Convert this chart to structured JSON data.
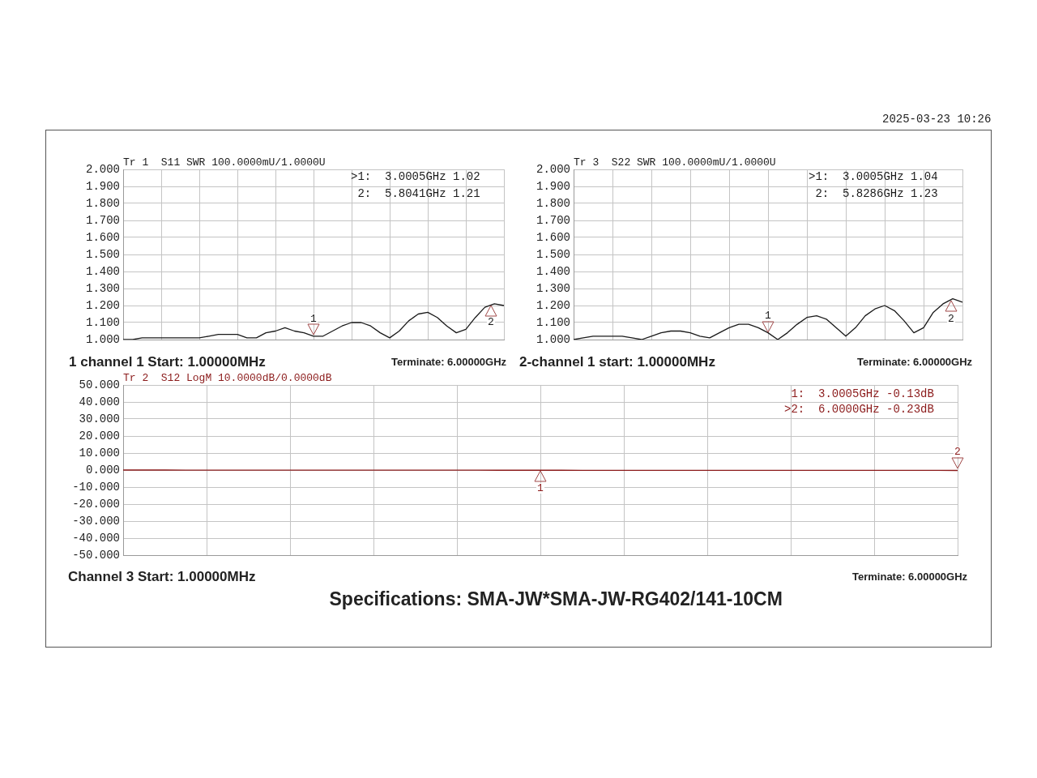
{
  "chart_data": [
    {
      "type": "line",
      "title": "Tr 1  S11 SWR 100.0000mU/1.0000U",
      "categories": [
        null,
        null,
        null,
        null,
        null,
        null,
        null,
        null,
        null,
        null,
        null,
        null,
        null,
        null,
        null,
        null,
        null,
        null,
        null,
        null,
        null,
        null,
        null,
        null,
        null,
        null,
        null,
        null,
        null,
        null,
        null,
        null,
        null,
        null,
        null,
        null,
        null,
        null,
        null,
        null,
        null
      ],
      "series": [
        {
          "color": "#1a1a1a",
          "values": [
            1.0,
            1.0,
            1.01,
            1.01,
            1.01,
            1.01,
            1.01,
            1.01,
            1.01,
            1.02,
            1.03,
            1.03,
            1.03,
            1.01,
            1.01,
            1.04,
            1.05,
            1.07,
            1.05,
            1.04,
            1.02,
            1.02,
            1.05,
            1.08,
            1.1,
            1.1,
            1.08,
            1.04,
            1.01,
            1.05,
            1.11,
            1.15,
            1.16,
            1.13,
            1.08,
            1.04,
            1.06,
            1.13,
            1.19,
            1.21,
            1.2
          ]
        }
      ],
      "ylim": [
        1,
        2
      ],
      "yticks": [
        {
          "value": 1,
          "label": "1.000"
        },
        {
          "value": 1.1,
          "label": "1.100"
        },
        {
          "value": 1.2,
          "label": "1.200"
        },
        {
          "value": 1.3,
          "label": "1.300"
        },
        {
          "value": 1.4,
          "label": "1.400"
        },
        {
          "value": 1.5,
          "label": "1.500"
        },
        {
          "value": 1.6,
          "label": "1.600"
        },
        {
          "value": 1.7,
          "label": "1.700"
        },
        {
          "value": 1.8,
          "label": "1.800"
        },
        {
          "value": 1.9,
          "label": "1.900"
        },
        {
          "value": 2,
          "label": "2.000"
        }
      ],
      "grid": true,
      "annotations": [
        ">1:  3.0005GHz 1.02",
        " 2:  5.8041GHz 1.21",
        "1 channel 1 Start: 1.00000MHz",
        "Terminate: 6.00000GHz",
        "1",
        "2"
      ]
    },
    {
      "type": "line",
      "title": "Tr 3  S22 SWR 100.0000mU/1.0000U",
      "categories": [
        null,
        null,
        null,
        null,
        null,
        null,
        null,
        null,
        null,
        null,
        null,
        null,
        null,
        null,
        null,
        null,
        null,
        null,
        null,
        null,
        null,
        null,
        null,
        null,
        null,
        null,
        null,
        null,
        null,
        null,
        null,
        null,
        null,
        null,
        null,
        null,
        null,
        null,
        null,
        null,
        null
      ],
      "series": [
        {
          "color": "#1a1a1a",
          "values": [
            1.0,
            1.01,
            1.02,
            1.02,
            1.02,
            1.02,
            1.01,
            1.0,
            1.02,
            1.04,
            1.05,
            1.05,
            1.04,
            1.02,
            1.01,
            1.04,
            1.07,
            1.09,
            1.09,
            1.07,
            1.04,
            1.0,
            1.04,
            1.09,
            1.13,
            1.14,
            1.12,
            1.07,
            1.02,
            1.07,
            1.14,
            1.18,
            1.2,
            1.17,
            1.11,
            1.04,
            1.07,
            1.16,
            1.21,
            1.24,
            1.22
          ]
        }
      ],
      "ylim": [
        1,
        2
      ],
      "yticks": [
        {
          "value": 1,
          "label": "1.000"
        },
        {
          "value": 1.1,
          "label": "1.100"
        },
        {
          "value": 1.2,
          "label": "1.200"
        },
        {
          "value": 1.3,
          "label": "1.300"
        },
        {
          "value": 1.4,
          "label": "1.400"
        },
        {
          "value": 1.5,
          "label": "1.500"
        },
        {
          "value": 1.6,
          "label": "1.600"
        },
        {
          "value": 1.7,
          "label": "1.700"
        },
        {
          "value": 1.8,
          "label": "1.800"
        },
        {
          "value": 1.9,
          "label": "1.900"
        },
        {
          "value": 2,
          "label": "2.000"
        }
      ],
      "grid": true,
      "annotations": [
        ">1:  3.0005GHz 1.04",
        " 2:  5.8286GHz 1.23",
        "2-channel 1 start: 1.00000MHz",
        "Terminate: 6.00000GHz",
        "1",
        "2",
        "2025-03-23 10:26"
      ]
    },
    {
      "type": "line",
      "title": "Tr 2  S12 LogM 10.0000dB/0.0000dB",
      "categories": [
        null,
        null,
        null,
        null,
        null,
        null,
        null,
        null,
        null,
        null,
        null,
        null,
        null,
        null,
        null,
        null,
        null,
        null,
        null,
        null,
        null,
        null,
        null,
        null,
        null,
        null,
        null,
        null,
        null,
        null,
        null,
        null,
        null,
        null,
        null,
        null,
        null,
        null,
        null,
        null,
        null
      ],
      "series": [
        {
          "color": "#8b1a1a",
          "values": [
            0,
            -0.01,
            -0.01,
            -0.02,
            -0.02,
            -0.03,
            -0.03,
            -0.04,
            -0.04,
            -0.05,
            -0.05,
            -0.06,
            -0.06,
            -0.07,
            -0.08,
            -0.08,
            -0.09,
            -0.1,
            -0.11,
            -0.12,
            -0.13,
            -0.13,
            -0.14,
            -0.14,
            -0.15,
            -0.15,
            -0.16,
            -0.16,
            -0.17,
            -0.17,
            -0.18,
            -0.18,
            -0.19,
            -0.19,
            -0.2,
            -0.2,
            -0.21,
            -0.21,
            -0.22,
            -0.22,
            -0.23
          ]
        }
      ],
      "ylim": [
        -50,
        50
      ],
      "yticks": [
        {
          "value": -50,
          "label": "-50.000"
        },
        {
          "value": -40,
          "label": "-40.000"
        },
        {
          "value": -30,
          "label": "-30.000"
        },
        {
          "value": -20,
          "label": "-20.000"
        },
        {
          "value": -10,
          "label": "-10.000"
        },
        {
          "value": 0,
          "label": "0.000"
        },
        {
          "value": 10,
          "label": "10.000"
        },
        {
          "value": 20,
          "label": "20.000"
        },
        {
          "value": 30,
          "label": "30.000"
        },
        {
          "value": 40,
          "label": "40.000"
        },
        {
          "value": 50,
          "label": "50.000"
        }
      ],
      "grid": true,
      "annotations": [
        " 1:  3.0005GHz -0.13dB",
        ">2:  6.0000GHz -0.23dB",
        "Channel 3 Start: 1.00000MHz",
        "Terminate: 6.00000GHz",
        "1",
        "2",
        "Specifications: SMA-JW*SMA-JW-RG402/141-10CM"
      ]
    }
  ]
}
